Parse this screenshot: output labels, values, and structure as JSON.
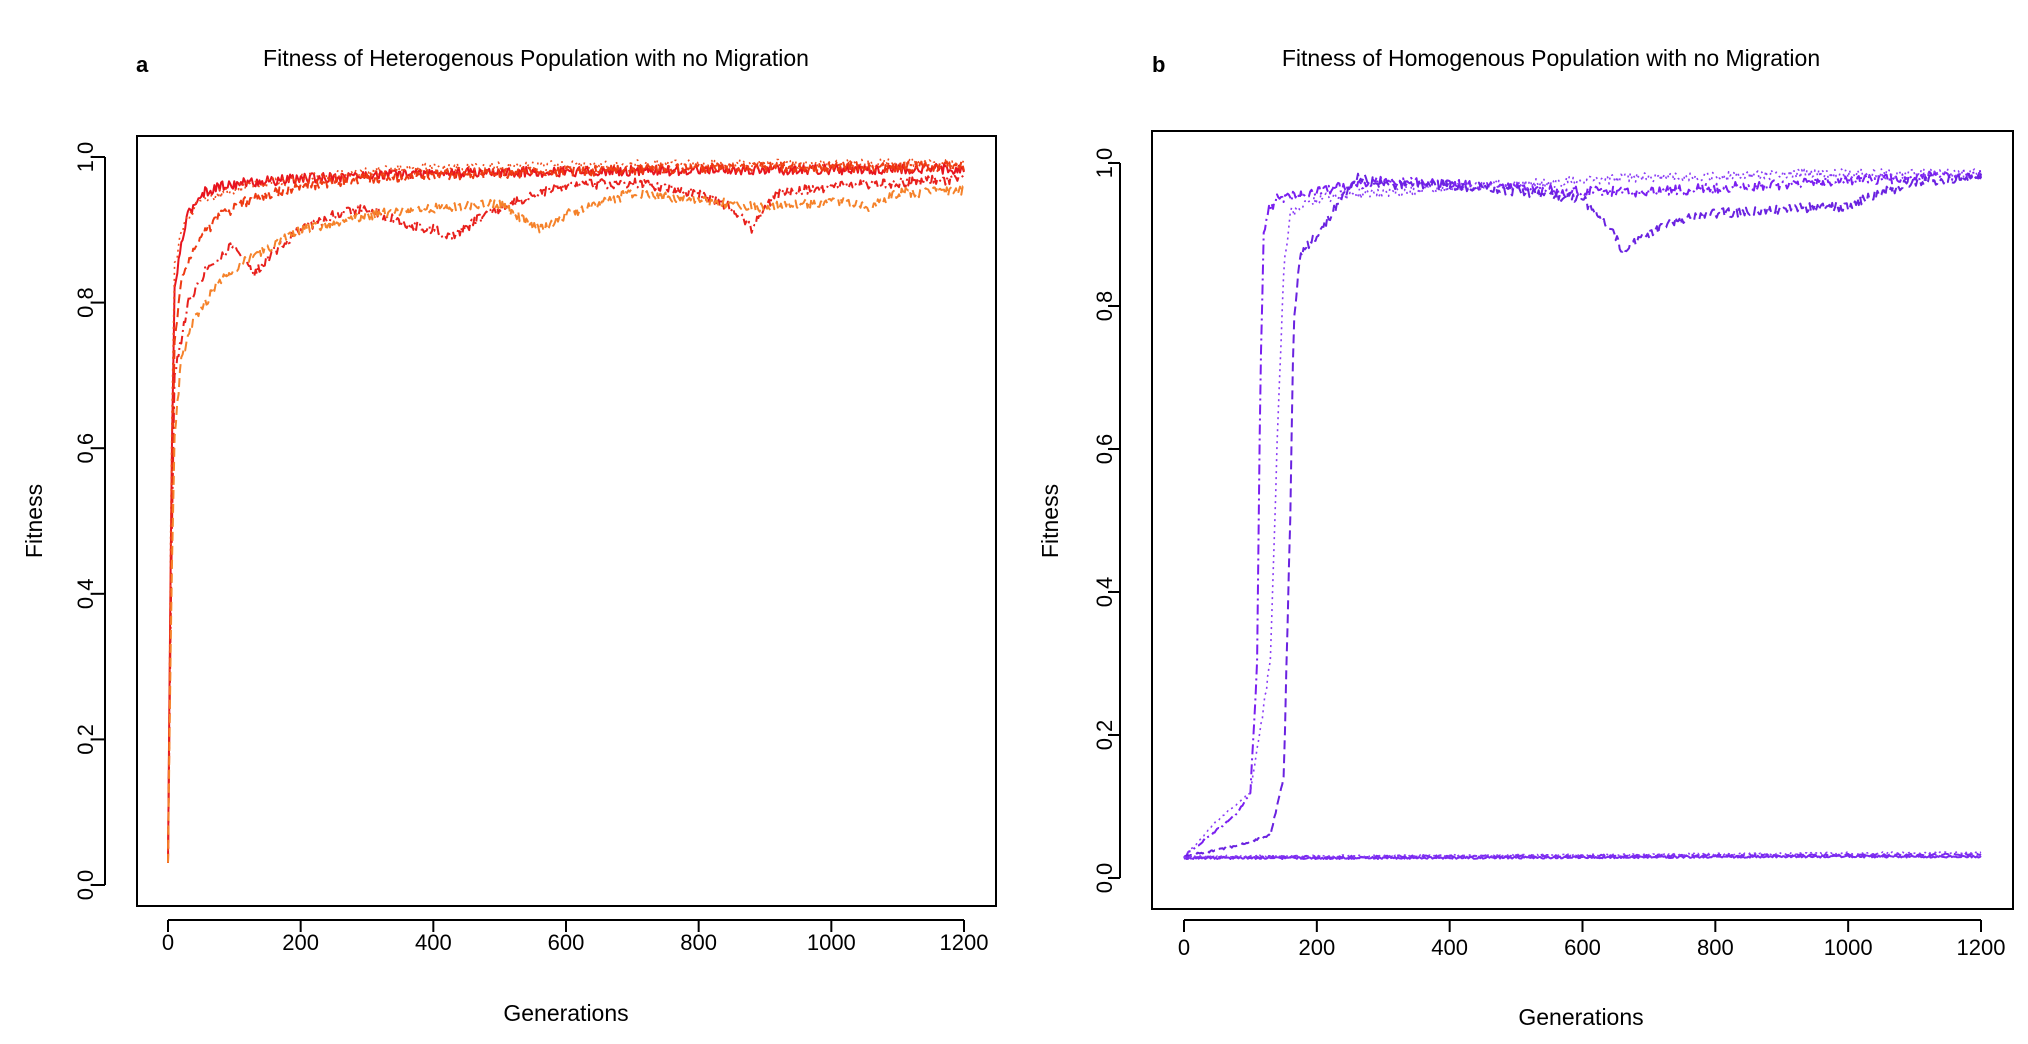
{
  "chart_data": [
    {
      "type": "line",
      "panel": "a",
      "title": "Fitness of Heterogenous Population with no Migration",
      "xlabel": "Generations",
      "ylabel": "Fitness",
      "xlim": [
        0,
        1200
      ],
      "ylim": [
        0,
        1
      ],
      "xticks": [
        0,
        200,
        400,
        600,
        800,
        1000,
        1200
      ],
      "yticks": [
        0.0,
        0.2,
        0.4,
        0.6,
        0.8,
        1.0
      ],
      "grid": false,
      "legend": "none",
      "series": [
        {
          "color": "#e8141e",
          "dash": "solid",
          "x": [
            0,
            5,
            10,
            20,
            30,
            50,
            80,
            120,
            200,
            300,
            400,
            600,
            800,
            1000,
            1200
          ],
          "y": [
            0.03,
            0.55,
            0.82,
            0.88,
            0.92,
            0.95,
            0.96,
            0.965,
            0.97,
            0.975,
            0.978,
            0.98,
            0.982,
            0.983,
            0.984
          ]
        },
        {
          "color": "#ee3a12",
          "dash": "dash",
          "x": [
            0,
            5,
            10,
            20,
            40,
            80,
            120,
            200,
            300,
            400,
            600,
            800,
            1000,
            1200
          ],
          "y": [
            0.03,
            0.5,
            0.75,
            0.83,
            0.88,
            0.92,
            0.94,
            0.96,
            0.97,
            0.975,
            0.98,
            0.985,
            0.986,
            0.987
          ]
        },
        {
          "color": "#f04a1a",
          "dash": "dot",
          "x": [
            0,
            5,
            10,
            20,
            40,
            80,
            120,
            200,
            300,
            400,
            600,
            800,
            1000,
            1200
          ],
          "y": [
            0.03,
            0.6,
            0.85,
            0.9,
            0.93,
            0.95,
            0.96,
            0.97,
            0.98,
            0.985,
            0.988,
            0.99,
            0.99,
            0.99
          ]
        },
        {
          "color": "#e8201c",
          "dash": "dashdot",
          "x": [
            0,
            5,
            10,
            30,
            60,
            100,
            130,
            160,
            200,
            250,
            300,
            350,
            400,
            430,
            460,
            500,
            560,
            600,
            700,
            800,
            850,
            880,
            900,
            920,
            1000,
            1100,
            1200
          ],
          "y": [
            0.03,
            0.45,
            0.7,
            0.8,
            0.85,
            0.88,
            0.84,
            0.87,
            0.9,
            0.92,
            0.93,
            0.91,
            0.9,
            0.89,
            0.91,
            0.93,
            0.95,
            0.96,
            0.965,
            0.95,
            0.93,
            0.9,
            0.93,
            0.95,
            0.96,
            0.965,
            0.97
          ]
        },
        {
          "color": "#f5822a",
          "dash": "dash",
          "x": [
            0,
            5,
            10,
            20,
            40,
            80,
            120,
            160,
            200,
            300,
            400,
            500,
            560,
            600,
            660,
            700,
            800,
            900,
            1000,
            1060,
            1100,
            1200
          ],
          "y": [
            0.03,
            0.4,
            0.62,
            0.72,
            0.78,
            0.83,
            0.86,
            0.88,
            0.9,
            0.92,
            0.93,
            0.935,
            0.9,
            0.92,
            0.94,
            0.95,
            0.94,
            0.93,
            0.94,
            0.93,
            0.95,
            0.955
          ]
        }
      ]
    },
    {
      "type": "line",
      "panel": "b",
      "title": "Fitness of Homogenous Population with no Migration",
      "xlabel": "Generations",
      "ylabel": "Fitness",
      "xlim": [
        0,
        1200
      ],
      "ylim": [
        0,
        1
      ],
      "xticks": [
        0,
        200,
        400,
        600,
        800,
        1000,
        1200
      ],
      "yticks": [
        0.0,
        0.2,
        0.4,
        0.6,
        0.8,
        1.0
      ],
      "grid": false,
      "legend": "none",
      "series": [
        {
          "color": "#7a1ff0",
          "dash": "dashdot",
          "x": [
            0,
            40,
            80,
            100,
            110,
            115,
            120,
            125,
            140,
            200,
            260,
            300,
            400,
            500,
            600,
            700,
            800,
            900,
            1000,
            1100,
            1200
          ],
          "y": [
            0.03,
            0.06,
            0.09,
            0.12,
            0.3,
            0.7,
            0.9,
            0.93,
            0.95,
            0.96,
            0.97,
            0.975,
            0.97,
            0.965,
            0.96,
            0.96,
            0.965,
            0.97,
            0.975,
            0.98,
            0.985
          ]
        },
        {
          "color": "#8a3cf5",
          "dash": "dot",
          "x": [
            0,
            50,
            100,
            130,
            140,
            150,
            160,
            200,
            300,
            400,
            500,
            600,
            700,
            800,
            900,
            1000,
            1100,
            1200
          ],
          "y": [
            0.03,
            0.08,
            0.12,
            0.3,
            0.6,
            0.85,
            0.93,
            0.95,
            0.96,
            0.965,
            0.97,
            0.975,
            0.98,
            0.98,
            0.985,
            0.985,
            0.985,
            0.985
          ]
        },
        {
          "color": "#6a22e0",
          "dash": "dash",
          "x": [
            0,
            80,
            130,
            150,
            160,
            165,
            175,
            200,
            260,
            300,
            400,
            500,
            600,
            640,
            660,
            680,
            700,
            740,
            800,
            900,
            1000,
            1100,
            1200
          ],
          "y": [
            0.03,
            0.045,
            0.06,
            0.14,
            0.5,
            0.78,
            0.87,
            0.9,
            0.98,
            0.97,
            0.97,
            0.96,
            0.95,
            0.91,
            0.88,
            0.89,
            0.9,
            0.92,
            0.93,
            0.935,
            0.94,
            0.975,
            0.98
          ]
        },
        {
          "color": "#7a2af0",
          "dash": "solid",
          "x": [
            0,
            300,
            600,
            900,
            1200
          ],
          "y": [
            0.028,
            0.028,
            0.029,
            0.03,
            0.03
          ]
        },
        {
          "color": "#7a2af0",
          "dash": "dash",
          "x": [
            0,
            300,
            600,
            900,
            1200
          ],
          "y": [
            0.029,
            0.03,
            0.031,
            0.032,
            0.033
          ]
        },
        {
          "color": "#8a3cf5",
          "dash": "dot",
          "x": [
            0,
            300,
            600,
            900,
            1200
          ],
          "y": [
            0.03,
            0.031,
            0.032,
            0.034,
            0.036
          ]
        }
      ]
    }
  ]
}
